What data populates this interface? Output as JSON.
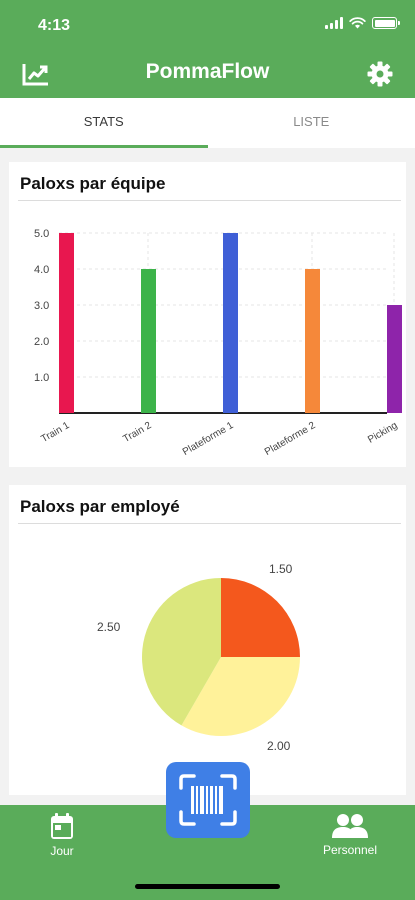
{
  "status_bar": {
    "time": "4:13"
  },
  "header": {
    "title": "PommaFlow",
    "left_icon": "trending-chart-icon",
    "right_icon": "gear-icon"
  },
  "tabs": [
    {
      "label": "STATS",
      "active": true
    },
    {
      "label": "LISTE",
      "active": false
    }
  ],
  "cards": {
    "team": {
      "title": "Paloxs par équipe"
    },
    "employee": {
      "title": "Paloxs par employé"
    }
  },
  "chart_data": [
    {
      "type": "bar",
      "title": "Paloxs par équipe",
      "categories": [
        "Train 1",
        "Train 2",
        "Plateforme 1",
        "Plateforme 2",
        "Picking"
      ],
      "values": [
        5.0,
        4.0,
        5.0,
        4.0,
        3.0
      ],
      "colors": [
        "#e8174f",
        "#3cb34a",
        "#3f5fd6",
        "#f5883a",
        "#8e24aa"
      ],
      "ylim": [
        0,
        5
      ],
      "yticks": [
        "1.0",
        "2.0",
        "3.0",
        "4.0",
        "5.0"
      ],
      "grid": true
    },
    {
      "type": "pie",
      "title": "Paloxs par employé",
      "labels": [
        "1.50",
        "2.00",
        "2.50"
      ],
      "values": [
        1.5,
        2.0,
        2.5
      ],
      "colors": [
        "#f4581d",
        "#fff29a",
        "#dbe77d"
      ]
    }
  ],
  "bottom_nav": {
    "left": {
      "label": "Jour",
      "icon": "calendar-icon"
    },
    "center": {
      "icon": "barcode-scan-icon"
    },
    "right": {
      "label": "Personnel",
      "icon": "people-icon"
    }
  },
  "colors": {
    "primary": "#5aac5a",
    "scan_button": "#3f7fe6"
  }
}
